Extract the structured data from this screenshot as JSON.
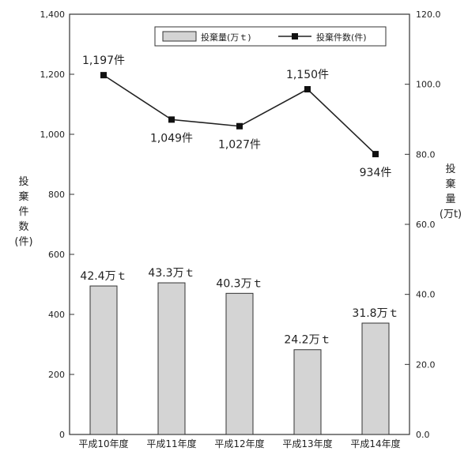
{
  "chart_data": {
    "type": "bar+line",
    "categories": [
      "平成10年度",
      "平成11年度",
      "平成12年度",
      "平成13年度",
      "平成14年度"
    ],
    "bar_series": {
      "name": "投棄量(万ｔ)",
      "values": [
        42.4,
        43.3,
        40.3,
        24.2,
        31.8
      ],
      "labels": [
        "42.4万ｔ",
        "43.3万ｔ",
        "40.3万ｔ",
        "24.2万ｔ",
        "31.8万ｔ"
      ],
      "axis": "right"
    },
    "line_series": {
      "name": "投棄件数(件)",
      "values": [
        1197,
        1049,
        1027,
        1150,
        934
      ],
      "labels": [
        "1,197件",
        "1,049件",
        "1,027件",
        "1,150件",
        "934件"
      ],
      "axis": "left"
    },
    "left_axis": {
      "label": [
        "投",
        "棄",
        "件",
        "数",
        "(件)"
      ],
      "ylim": [
        0,
        1400
      ],
      "ticks": [
        0,
        200,
        400,
        600,
        800,
        1000,
        1200,
        1400
      ],
      "tick_labels": [
        "0",
        "200",
        "400",
        "600",
        "800",
        "1,000",
        "1,200",
        "1,400"
      ]
    },
    "right_axis": {
      "label": [
        "投",
        "棄",
        "量",
        "(万t)"
      ],
      "ylim": [
        0,
        120
      ],
      "ticks": [
        0,
        20,
        40,
        60,
        80,
        100,
        120
      ],
      "tick_labels": [
        "0.0",
        "20.0",
        "40.0",
        "60.0",
        "80.0",
        "100.0",
        "120.0"
      ]
    },
    "legend_position": "top-right",
    "grid": false,
    "colors": {
      "bar_fill": "#d4d4d4",
      "bar_stroke": "#333333",
      "line": "#222222",
      "marker": "#111111"
    }
  }
}
